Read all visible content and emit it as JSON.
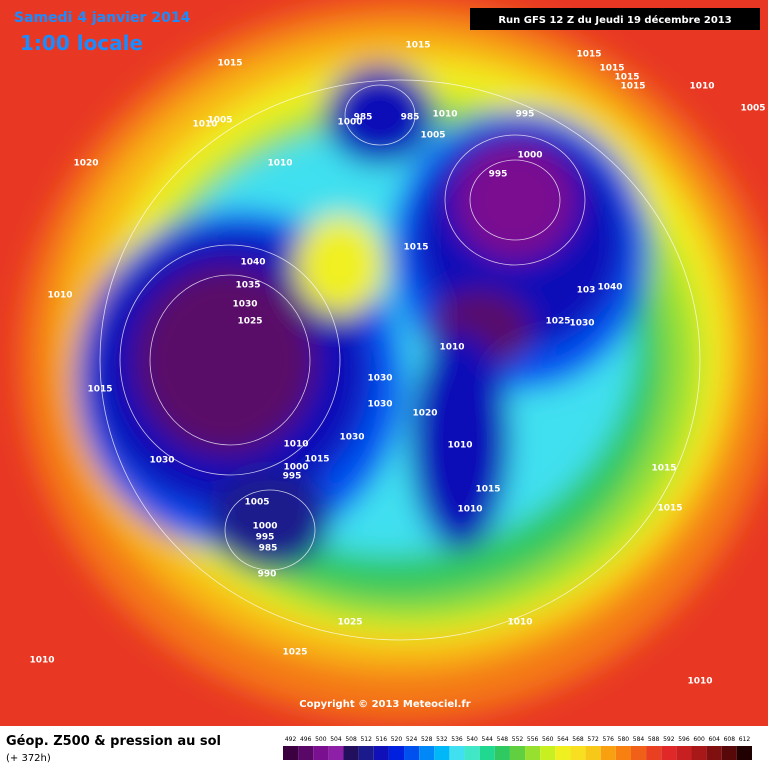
{
  "header": {
    "date": "Samedi 4 janvier 2014",
    "time": "1:00 locale",
    "run": "Run GFS 12 Z du Jeudi 19 décembre 2013"
  },
  "copyright": "Copyright © 2013 Meteociel.fr",
  "footer": {
    "title": "Géop. Z500 & pression au sol",
    "lead": "(+ 372h)"
  },
  "isobars": {
    "labels": [
      "1015",
      "1015",
      "1015",
      "1015",
      "1015",
      "1015",
      "1010",
      "1005",
      "1010",
      "1005",
      "985",
      "985",
      "1000",
      "1010",
      "995",
      "1005",
      "1020",
      "1010",
      "1000",
      "995",
      "1015",
      "1040",
      "1035",
      "1030",
      "1025",
      "1010",
      "103",
      "1040",
      "1025",
      "1030",
      "1010",
      "1015",
      "1030",
      "1030",
      "1020",
      "1030",
      "1010",
      "1010",
      "1015",
      "1000",
      "995",
      "1030",
      "1015",
      "1015",
      "1005",
      "1010",
      "1015",
      "1000",
      "995",
      "985",
      "990",
      "1025",
      "1010",
      "1025",
      "1010",
      "1010"
    ]
  },
  "scale": {
    "values": [
      492,
      496,
      500,
      504,
      508,
      512,
      516,
      520,
      524,
      528,
      532,
      536,
      540,
      544,
      548,
      552,
      556,
      560,
      564,
      568,
      572,
      576,
      580,
      584,
      588,
      592,
      596,
      600,
      604,
      608,
      612
    ],
    "colors": [
      "#3a0040",
      "#5a0868",
      "#7a1090",
      "#8e20a8",
      "#22105e",
      "#1a1a8c",
      "#1010b8",
      "#0020e0",
      "#0050f0",
      "#0088f8",
      "#00b8f8",
      "#40e0f0",
      "#40e8c8",
      "#20d890",
      "#30c860",
      "#60d040",
      "#98e030",
      "#c8f020",
      "#f0f020",
      "#f8e020",
      "#f8c818",
      "#f8a010",
      "#f88010",
      "#f06018",
      "#e84020",
      "#e02828",
      "#c82020",
      "#a81818",
      "#801010",
      "#580808",
      "#200000"
    ]
  }
}
